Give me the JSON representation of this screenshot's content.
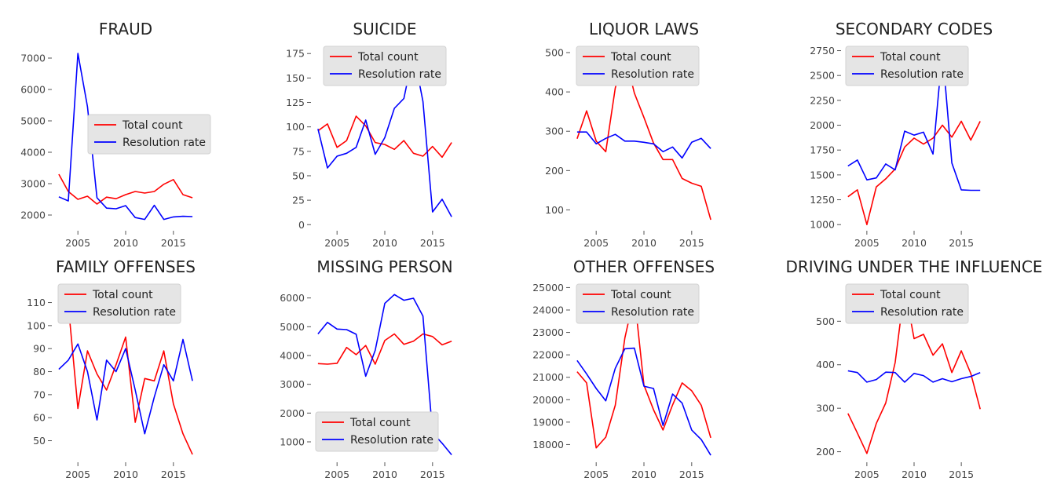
{
  "colors": {
    "total_count": "#ff0000",
    "resolution_rate": "#0000ff",
    "legend_bg": "#e5e5e5"
  },
  "chart_data": [
    {
      "type": "line",
      "title": "FRAUD",
      "x": [
        2003,
        2004,
        2005,
        2006,
        2007,
        2008,
        2009,
        2010,
        2011,
        2012,
        2013,
        2014,
        2015,
        2016,
        2017
      ],
      "xlim": [
        2002.6,
        2017.4
      ],
      "ylim": [
        1600,
        7300
      ],
      "xticks": [
        2005,
        2010,
        2015
      ],
      "yticks": [
        2000,
        3000,
        4000,
        5000,
        6000,
        7000
      ],
      "legend_loc": "center-right",
      "series": [
        {
          "name": "Total count",
          "color": "#ff0000",
          "values": [
            3300,
            2750,
            2500,
            2600,
            2350,
            2570,
            2520,
            2650,
            2750,
            2700,
            2750,
            2980,
            3130,
            2650,
            2550
          ]
        },
        {
          "name": "Resolution rate",
          "color": "#0000ff",
          "values": [
            2580,
            2450,
            7150,
            5450,
            2550,
            2220,
            2200,
            2300,
            1920,
            1860,
            2310,
            1860,
            1940,
            1960,
            1950
          ]
        }
      ]
    },
    {
      "type": "line",
      "title": "SUICIDE",
      "x": [
        2003,
        2004,
        2005,
        2006,
        2007,
        2008,
        2009,
        2010,
        2011,
        2012,
        2013,
        2014,
        2015,
        2016,
        2017
      ],
      "xlim": [
        2002.6,
        2017.4
      ],
      "ylim": [
        -3,
        180
      ],
      "xticks": [
        2005,
        2010,
        2015
      ],
      "yticks": [
        0,
        25,
        50,
        75,
        100,
        125,
        150,
        175
      ],
      "legend_loc": "upper-center",
      "series": [
        {
          "name": "Total count",
          "color": "#ff0000",
          "values": [
            96,
            103,
            79,
            86,
            111,
            101,
            84,
            82,
            77,
            86,
            73,
            70,
            80,
            69,
            84
          ]
        },
        {
          "name": "Resolution rate",
          "color": "#0000ff",
          "values": [
            98,
            58,
            70,
            73,
            79,
            107,
            72,
            89,
            119,
            129,
            176,
            126,
            13,
            26,
            8
          ]
        }
      ]
    },
    {
      "type": "line",
      "title": "LIQUOR LAWS",
      "x": [
        2003,
        2004,
        2005,
        2006,
        2007,
        2008,
        2009,
        2010,
        2011,
        2012,
        2013,
        2014,
        2015,
        2016,
        2017
      ],
      "xlim": [
        2002.6,
        2017.4
      ],
      "ylim": [
        55,
        510
      ],
      "xticks": [
        2005,
        2010,
        2015
      ],
      "yticks": [
        100,
        200,
        300,
        400,
        500
      ],
      "legend_loc": "upper-right",
      "series": [
        {
          "name": "Total count",
          "color": "#ff0000",
          "values": [
            281,
            352,
            275,
            248,
            410,
            495,
            397,
            335,
            270,
            228,
            228,
            180,
            168,
            160,
            75
          ]
        },
        {
          "name": "Resolution rate",
          "color": "#0000ff",
          "values": [
            298,
            298,
            268,
            282,
            292,
            275,
            275,
            272,
            268,
            248,
            260,
            232,
            272,
            282,
            256
          ]
        }
      ]
    },
    {
      "type": "line",
      "title": "SECONDARY CODES",
      "x": [
        2003,
        2004,
        2005,
        2006,
        2007,
        2008,
        2009,
        2010,
        2011,
        2012,
        2013,
        2014,
        2015,
        2016,
        2017
      ],
      "xlim": [
        2002.6,
        2017.4
      ],
      "ylim": [
        970,
        2770
      ],
      "xticks": [
        2005,
        2010,
        2015
      ],
      "yticks": [
        1000,
        1250,
        1500,
        1750,
        2000,
        2250,
        2500,
        2750
      ],
      "legend_loc": "upper-right",
      "series": [
        {
          "name": "Total count",
          "color": "#ff0000",
          "values": [
            1280,
            1350,
            1000,
            1380,
            1460,
            1560,
            1780,
            1870,
            1810,
            1870,
            2000,
            1880,
            2040,
            1850,
            2040
          ]
        },
        {
          "name": "Resolution rate",
          "color": "#0000ff",
          "values": [
            1590,
            1650,
            1450,
            1470,
            1610,
            1550,
            1940,
            1900,
            1930,
            1710,
            2750,
            1620,
            1350,
            1345,
            1345
          ]
        }
      ]
    },
    {
      "type": "line",
      "title": "FAMILY OFFENSES",
      "x": [
        2003,
        2004,
        2005,
        2006,
        2007,
        2008,
        2009,
        2010,
        2011,
        2012,
        2013,
        2014,
        2015,
        2016,
        2017
      ],
      "xlim": [
        2002.6,
        2017.4
      ],
      "ylim": [
        42,
        117
      ],
      "xticks": [
        2005,
        2010,
        2015
      ],
      "yticks": [
        50,
        60,
        70,
        80,
        90,
        100,
        110
      ],
      "legend_loc": "upper-right",
      "series": [
        {
          "name": "Total count",
          "color": "#ff0000",
          "values": [
            116,
            109,
            64,
            89,
            79,
            72,
            83,
            95,
            58,
            77,
            76,
            89,
            66,
            53,
            44
          ]
        },
        {
          "name": "Resolution rate",
          "color": "#0000ff",
          "values": [
            81,
            85,
            92,
            80,
            59,
            85,
            80,
            90,
            72,
            53,
            69,
            83,
            76,
            94,
            76
          ]
        }
      ]
    },
    {
      "type": "line",
      "title": "MISSING PERSON",
      "x": [
        2003,
        2004,
        2005,
        2006,
        2007,
        2008,
        2009,
        2010,
        2011,
        2012,
        2013,
        2014,
        2015,
        2016,
        2017
      ],
      "xlim": [
        2002.6,
        2017.4
      ],
      "ylim": [
        400,
        6400
      ],
      "xticks": [
        2005,
        2010,
        2015
      ],
      "yticks": [
        1000,
        2000,
        3000,
        4000,
        5000,
        6000
      ],
      "legend_loc": "lower-left",
      "series": [
        {
          "name": "Total count",
          "color": "#ff0000",
          "values": [
            3720,
            3700,
            3730,
            4280,
            4030,
            4350,
            3700,
            4520,
            4750,
            4390,
            4500,
            4750,
            4660,
            4370,
            4500
          ]
        },
        {
          "name": "Resolution rate",
          "color": "#0000ff",
          "values": [
            4750,
            5150,
            4920,
            4900,
            4740,
            3280,
            4180,
            5810,
            6120,
            5920,
            5990,
            5370,
            1320,
            950,
            550
          ]
        }
      ]
    },
    {
      "type": "line",
      "title": "OTHER OFFENSES",
      "x": [
        2003,
        2004,
        2005,
        2006,
        2007,
        2008,
        2009,
        2010,
        2011,
        2012,
        2013,
        2014,
        2015,
        2016,
        2017
      ],
      "xlim": [
        2002.6,
        2017.4
      ],
      "ylim": [
        17350,
        25050
      ],
      "xticks": [
        2005,
        2010,
        2015
      ],
      "yticks": [
        18000,
        19000,
        20000,
        21000,
        22000,
        23000,
        24000,
        25000
      ],
      "legend_loc": "upper-right",
      "series": [
        {
          "name": "Total count",
          "color": "#ff0000",
          "values": [
            21250,
            20750,
            17850,
            18330,
            19750,
            22750,
            24650,
            20650,
            19550,
            18650,
            19770,
            20750,
            20400,
            19750,
            18300
          ]
        },
        {
          "name": "Resolution rate",
          "color": "#0000ff",
          "values": [
            21750,
            21150,
            20500,
            19950,
            21400,
            22270,
            22300,
            20600,
            20500,
            18850,
            20250,
            19850,
            18650,
            18220,
            17520
          ]
        }
      ]
    },
    {
      "type": "line",
      "title": "DRIVING UNDER THE INFLUENCE",
      "x": [
        2003,
        2004,
        2005,
        2006,
        2007,
        2008,
        2009,
        2010,
        2011,
        2012,
        2013,
        2014,
        2015,
        2016,
        2017
      ],
      "xlim": [
        2002.6,
        2017.4
      ],
      "ylim": [
        183,
        580
      ],
      "xticks": [
        2005,
        2010,
        2015
      ],
      "yticks": [
        200,
        300,
        400,
        500
      ],
      "legend_loc": "upper-right",
      "series": [
        {
          "name": "Total count",
          "color": "#ff0000",
          "values": [
            288,
            243,
            196,
            265,
            312,
            405,
            578,
            460,
            470,
            422,
            448,
            382,
            432,
            380,
            298
          ]
        },
        {
          "name": "Resolution rate",
          "color": "#0000ff",
          "values": [
            386,
            382,
            360,
            366,
            383,
            382,
            360,
            380,
            375,
            360,
            368,
            361,
            368,
            373,
            382
          ]
        }
      ]
    }
  ]
}
